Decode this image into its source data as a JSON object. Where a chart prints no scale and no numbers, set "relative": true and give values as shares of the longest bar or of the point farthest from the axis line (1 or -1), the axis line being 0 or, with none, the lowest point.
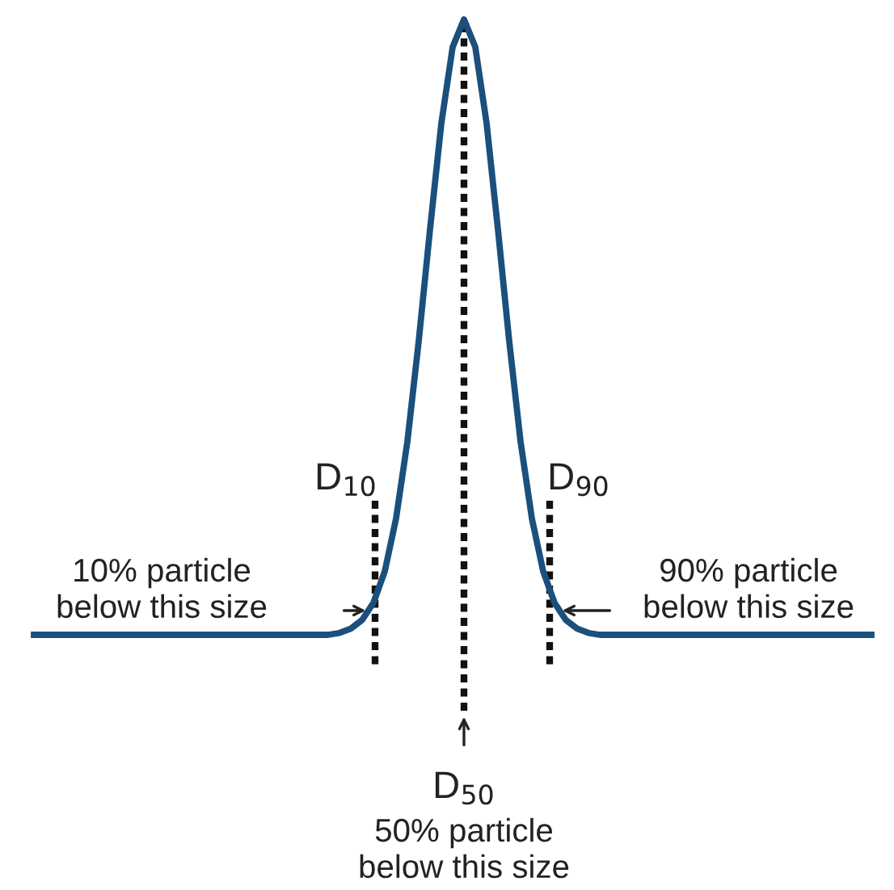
{
  "chart_data": {
    "type": "line",
    "relative": true,
    "categories": [
      null,
      null,
      null,
      null,
      null,
      null,
      null,
      null,
      null,
      null,
      null,
      null,
      null,
      null,
      null,
      null,
      null,
      null,
      null,
      null,
      null,
      null,
      null,
      null,
      null,
      null,
      null,
      null,
      null,
      null,
      null,
      null,
      null,
      null,
      null,
      null,
      null,
      null,
      null,
      null,
      null,
      null,
      null,
      null,
      null,
      null,
      null,
      null,
      null,
      null,
      null,
      null,
      null,
      null,
      null,
      null,
      null,
      null,
      null,
      null,
      null,
      null,
      null,
      null,
      null,
      null,
      null,
      null,
      null,
      null,
      null,
      null,
      null,
      null,
      null
    ],
    "series": [
      {
        "color": "#1b4f7c",
        "values": [
          0,
          0,
          0,
          0,
          0,
          0,
          0,
          0,
          0,
          0,
          0,
          0,
          0,
          0,
          0,
          0,
          0,
          0,
          0,
          0,
          0,
          0,
          0,
          0,
          0,
          0,
          0,
          0.003,
          0.01,
          0.024,
          0.052,
          0.103,
          0.189,
          0.314,
          0.477,
          0.659,
          0.831,
          0.955,
          1,
          0.955,
          0.831,
          0.659,
          0.477,
          0.314,
          0.189,
          0.103,
          0.052,
          0.024,
          0.01,
          0.003,
          0,
          0,
          0,
          0,
          0,
          0,
          0,
          0,
          0,
          0,
          0,
          0,
          0,
          0,
          0,
          0,
          0,
          0,
          0,
          0,
          0,
          0,
          0,
          0,
          0
        ]
      }
    ],
    "line_style": "solid",
    "marker": "none",
    "annotations": [
      "D$_{10}$",
      "10% particle\nbelow this size",
      "D$_{50}$",
      "50% particle\nbelow this size",
      "D$_{90}$",
      "90% particle\nbelow this size"
    ]
  }
}
